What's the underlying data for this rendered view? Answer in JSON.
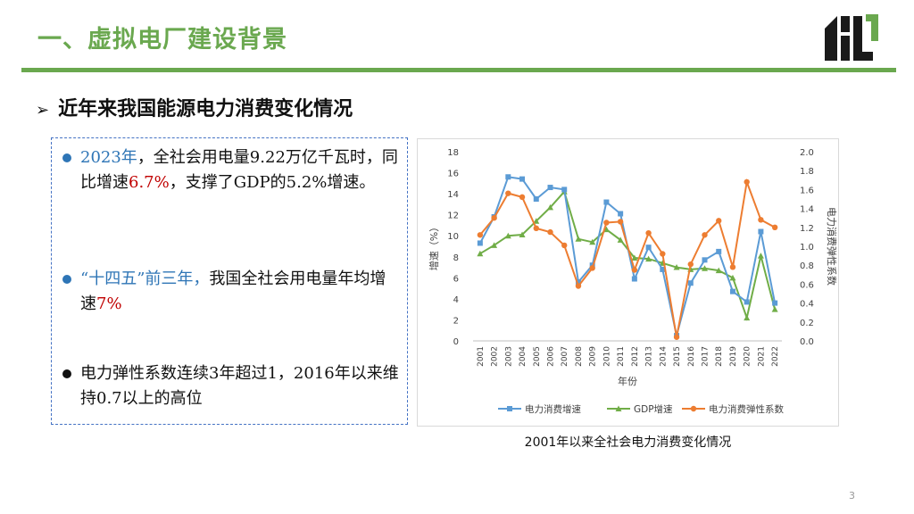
{
  "header": {
    "title": "一、虚拟电厂建设背景",
    "logo_name": "logo-mark"
  },
  "section": {
    "subtitle_arrow": "➢",
    "subtitle": "近年来我国能源电力消费变化情况"
  },
  "bullets": [
    {
      "parts": [
        {
          "text": "2023年",
          "style": "blue"
        },
        {
          "text": "，全社会用电量9.22万亿千瓦时，同比增速",
          "style": "normal"
        },
        {
          "text": "6.7%",
          "style": "red"
        },
        {
          "text": "，支撑了GDP的5.2%增速。",
          "style": "normal"
        }
      ]
    },
    {
      "parts": [
        {
          "text": "“十四五”前三年，",
          "style": "blue"
        },
        {
          "text": "我国全社会用电量年均增速",
          "style": "normal"
        },
        {
          "text": "7%",
          "style": "red"
        }
      ]
    },
    {
      "parts": [
        {
          "text": "电力弹性系数连续3年超过1，2016年以来维持0.7以上的高位",
          "style": "normal"
        }
      ]
    }
  ],
  "colors": {
    "accent_green": "#6aa84f",
    "blue": "#2e75b6",
    "red": "#c00000",
    "series_power": "#5b9bd5",
    "series_gdp": "#70ad47",
    "series_elasticity": "#ed7d31"
  },
  "chart_data": {
    "type": "line",
    "title": "",
    "xlabel": "年份",
    "ylabel": "增速（%）",
    "y2label": "电力消费弹性系数",
    "ylim": [
      0,
      18
    ],
    "y2lim": [
      0,
      2.0
    ],
    "yticks": [
      "0",
      "2",
      "4",
      "6",
      "8",
      "10",
      "12",
      "14",
      "16",
      "18"
    ],
    "y2ticks": [
      "0.0",
      "0.2",
      "0.4",
      "0.6",
      "0.8",
      "1.0",
      "1.2",
      "1.4",
      "1.6",
      "1.8",
      "2.0"
    ],
    "categories": [
      "2001",
      "2002",
      "2003",
      "2004",
      "2005",
      "2006",
      "2007",
      "2008",
      "2009",
      "2010",
      "2011",
      "2012",
      "2013",
      "2014",
      "2015",
      "2016",
      "2017",
      "2018",
      "2019",
      "2020",
      "2021",
      "2022"
    ],
    "series": [
      {
        "name": "电力消费增速",
        "axis": "left",
        "marker": "square",
        "values": [
          9.3,
          11.8,
          15.6,
          15.4,
          13.5,
          14.6,
          14.4,
          5.6,
          7.2,
          13.2,
          12.1,
          5.9,
          8.9,
          6.8,
          0.5,
          5.5,
          7.7,
          8.5,
          4.7,
          3.7,
          10.4,
          3.6
        ]
      },
      {
        "name": "GDP增速",
        "axis": "left",
        "marker": "triangle",
        "values": [
          8.3,
          9.1,
          10.0,
          10.1,
          11.4,
          12.7,
          14.2,
          9.7,
          9.4,
          10.6,
          9.6,
          7.9,
          7.8,
          7.4,
          7.0,
          6.8,
          6.9,
          6.7,
          6.0,
          2.2,
          8.1,
          3.0
        ]
      },
      {
        "name": "电力消费弹性系数",
        "axis": "right",
        "marker": "circle",
        "values": [
          1.12,
          1.3,
          1.56,
          1.52,
          1.19,
          1.15,
          1.01,
          0.58,
          0.77,
          1.25,
          1.26,
          0.75,
          1.14,
          0.92,
          0.04,
          0.81,
          1.12,
          1.27,
          0.78,
          1.68,
          1.28,
          1.2
        ]
      }
    ],
    "legend_position": "bottom"
  },
  "caption": "2001年以来全社会电力消费变化情况",
  "page_number": "3"
}
